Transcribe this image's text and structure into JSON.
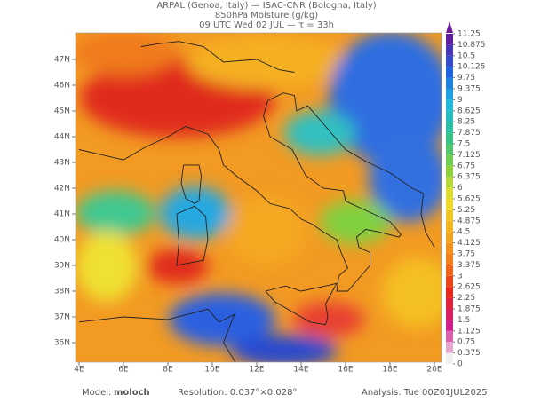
{
  "header": {
    "line1": "ARPAL (Genoa, Italy)  —  ISAC-CNR (Bologna, Italy)",
    "line2": "850hPa Moisture (g/kg)",
    "line3": "09 UTC Wed 02 JUL  —  τ = 33h"
  },
  "axes": {
    "lon_labels": [
      "4E",
      "6E",
      "8E",
      "10E",
      "12E",
      "14E",
      "16E",
      "18E",
      "20E"
    ],
    "lat_labels": [
      "47N",
      "46N",
      "45N",
      "44N",
      "43N",
      "42N",
      "41N",
      "40N",
      "39N",
      "38N",
      "37N",
      "36N"
    ]
  },
  "colorbar": {
    "levels": [
      0,
      0.375,
      0.75,
      1.125,
      1.5,
      1.875,
      2.25,
      2.625,
      3,
      3.375,
      3.75,
      4.125,
      4.5,
      4.875,
      5.25,
      5.625,
      6,
      6.375,
      6.75,
      7.125,
      7.5,
      7.875,
      8.25,
      8.625,
      9,
      9.375,
      9.75,
      10.125,
      10.5,
      10.875,
      11.25
    ]
  },
  "footer": {
    "model_label": "Model:",
    "model": "moloch",
    "resolution": "Resolution: 0.037°×0.028°",
    "analysis": "Analysis: Tue 00Z01JUL2025"
  }
}
